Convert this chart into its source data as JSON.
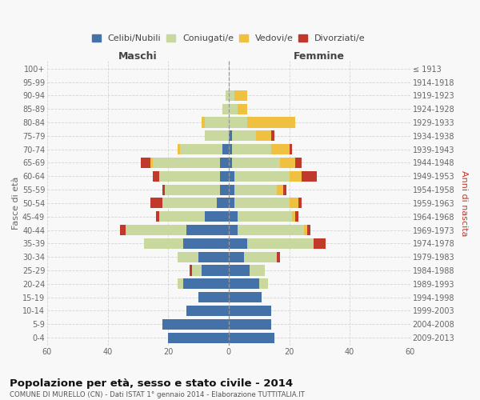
{
  "age_groups": [
    "0-4",
    "5-9",
    "10-14",
    "15-19",
    "20-24",
    "25-29",
    "30-34",
    "35-39",
    "40-44",
    "45-49",
    "50-54",
    "55-59",
    "60-64",
    "65-69",
    "70-74",
    "75-79",
    "80-84",
    "85-89",
    "90-94",
    "95-99",
    "100+"
  ],
  "birth_years": [
    "2009-2013",
    "2004-2008",
    "1999-2003",
    "1994-1998",
    "1989-1993",
    "1984-1988",
    "1979-1983",
    "1974-1978",
    "1969-1973",
    "1964-1968",
    "1959-1963",
    "1954-1958",
    "1949-1953",
    "1944-1948",
    "1939-1943",
    "1934-1938",
    "1929-1933",
    "1924-1928",
    "1919-1923",
    "1914-1918",
    "≤ 1913"
  ],
  "maschi": {
    "celibi": [
      20,
      22,
      14,
      10,
      15,
      9,
      10,
      15,
      14,
      8,
      4,
      3,
      3,
      3,
      2,
      0,
      0,
      0,
      0,
      0,
      0
    ],
    "coniugati": [
      0,
      0,
      0,
      0,
      2,
      3,
      7,
      13,
      20,
      15,
      18,
      18,
      20,
      22,
      14,
      8,
      8,
      2,
      1,
      0,
      0
    ],
    "vedovi": [
      0,
      0,
      0,
      0,
      0,
      0,
      0,
      0,
      0,
      0,
      0,
      0,
      0,
      1,
      1,
      0,
      1,
      0,
      0,
      0,
      0
    ],
    "divorziati": [
      0,
      0,
      0,
      0,
      0,
      1,
      0,
      0,
      2,
      1,
      4,
      1,
      2,
      3,
      0,
      0,
      0,
      0,
      0,
      0,
      0
    ]
  },
  "femmine": {
    "nubili": [
      15,
      14,
      14,
      11,
      10,
      7,
      5,
      6,
      3,
      3,
      2,
      2,
      2,
      1,
      1,
      1,
      0,
      0,
      0,
      0,
      0
    ],
    "coniugate": [
      0,
      0,
      0,
      0,
      3,
      5,
      11,
      22,
      22,
      18,
      18,
      14,
      18,
      16,
      13,
      8,
      6,
      3,
      2,
      0,
      0
    ],
    "vedove": [
      0,
      0,
      0,
      0,
      0,
      0,
      0,
      0,
      1,
      1,
      3,
      2,
      4,
      5,
      6,
      5,
      16,
      3,
      4,
      0,
      0
    ],
    "divorziate": [
      0,
      0,
      0,
      0,
      0,
      0,
      1,
      4,
      1,
      1,
      1,
      1,
      5,
      2,
      1,
      1,
      0,
      0,
      0,
      0,
      0
    ]
  },
  "colors": {
    "celibi": "#4472a8",
    "coniugati": "#c8d89e",
    "vedovi": "#f0c040",
    "divorziati": "#c0392b"
  },
  "title": "Popolazione per età, sesso e stato civile - 2014",
  "subtitle": "COMUNE DI MURELLO (CN) - Dati ISTAT 1° gennaio 2014 - Elaborazione TUTTITALIA.IT",
  "ylabel": "Fasce di età",
  "ylabel2": "Anni di nascita",
  "xlabel_maschi": "Maschi",
  "xlabel_femmine": "Femmine",
  "xlim": 60,
  "legend_labels": [
    "Celibi/Nubili",
    "Coniugati/e",
    "Vedovi/e",
    "Divorziati/e"
  ],
  "bg_color": "#f8f8f8"
}
